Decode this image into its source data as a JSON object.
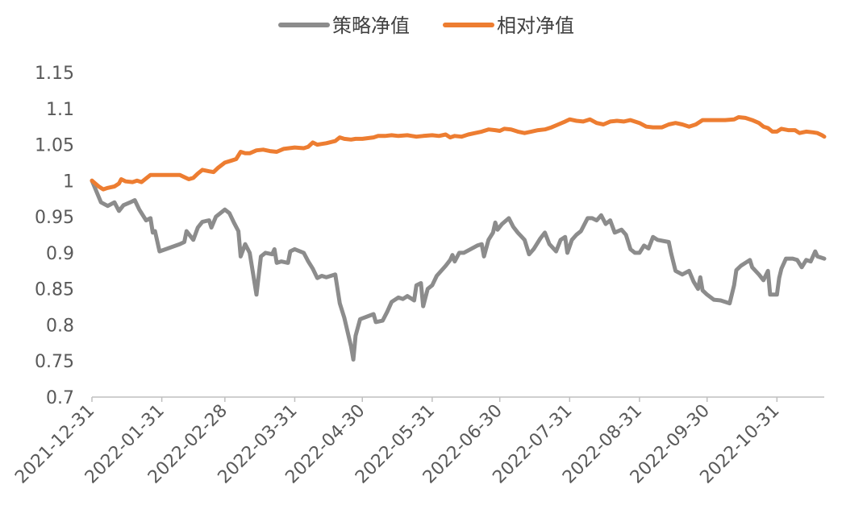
{
  "chart_data": {
    "type": "line",
    "title": "",
    "xlabel": "",
    "ylabel": "",
    "ylim": [
      0.7,
      1.15
    ],
    "y_ticks": [
      "0.7",
      "0.75",
      "0.8",
      "0.85",
      "0.9",
      "0.95",
      "1",
      "1.05",
      "1.1",
      "1.15"
    ],
    "x_range": [
      "2021-12-31",
      "2022-11-21"
    ],
    "x_ticks": [
      "2021-12-31",
      "2022-01-31",
      "2022-02-28",
      "2022-03-31",
      "2022-04-30",
      "2022-05-31",
      "2022-06-30",
      "2022-07-31",
      "2022-08-31",
      "2022-09-30",
      "2022-10-31"
    ],
    "grid": false,
    "legend": "top-center",
    "series": [
      {
        "name": "策略净值",
        "color": "#8c8c8c",
        "points": [
          [
            "2021-12-31",
            1.0
          ],
          [
            "2022-01-04",
            0.97
          ],
          [
            "2022-01-07",
            0.965
          ],
          [
            "2022-01-10",
            0.97
          ],
          [
            "2022-01-12",
            0.958
          ],
          [
            "2022-01-14",
            0.966
          ],
          [
            "2022-01-17",
            0.97
          ],
          [
            "2022-01-19",
            0.973
          ],
          [
            "2022-01-21",
            0.96
          ],
          [
            "2022-01-24",
            0.945
          ],
          [
            "2022-01-26",
            0.948
          ],
          [
            "2022-01-27",
            0.928
          ],
          [
            "2022-01-28",
            0.93
          ],
          [
            "2022-01-30",
            0.902
          ],
          [
            "2022-02-08",
            0.912
          ],
          [
            "2022-02-10",
            0.915
          ],
          [
            "2022-02-11",
            0.93
          ],
          [
            "2022-02-14",
            0.918
          ],
          [
            "2022-02-16",
            0.935
          ],
          [
            "2022-02-18",
            0.943
          ],
          [
            "2022-02-21",
            0.945
          ],
          [
            "2022-02-22",
            0.935
          ],
          [
            "2022-02-24",
            0.95
          ],
          [
            "2022-02-28",
            0.96
          ],
          [
            "2022-03-02",
            0.955
          ],
          [
            "2022-03-04",
            0.942
          ],
          [
            "2022-03-06",
            0.93
          ],
          [
            "2022-03-07",
            0.895
          ],
          [
            "2022-03-09",
            0.912
          ],
          [
            "2022-03-11",
            0.9
          ],
          [
            "2022-03-14",
            0.842
          ],
          [
            "2022-03-16",
            0.895
          ],
          [
            "2022-03-18",
            0.9
          ],
          [
            "2022-03-21",
            0.898
          ],
          [
            "2022-03-22",
            0.905
          ],
          [
            "2022-03-23",
            0.886
          ],
          [
            "2022-03-25",
            0.888
          ],
          [
            "2022-03-28",
            0.886
          ],
          [
            "2022-03-29",
            0.902
          ],
          [
            "2022-03-31",
            0.905
          ],
          [
            "2022-04-04",
            0.9
          ],
          [
            "2022-04-06",
            0.888
          ],
          [
            "2022-04-08",
            0.878
          ],
          [
            "2022-04-10",
            0.865
          ],
          [
            "2022-04-12",
            0.868
          ],
          [
            "2022-04-14",
            0.866
          ],
          [
            "2022-04-18",
            0.87
          ],
          [
            "2022-04-20",
            0.83
          ],
          [
            "2022-04-22",
            0.81
          ],
          [
            "2022-04-25",
            0.77
          ],
          [
            "2022-04-26",
            0.752
          ],
          [
            "2022-04-27",
            0.785
          ],
          [
            "2022-04-29",
            0.808
          ],
          [
            "2022-05-05",
            0.815
          ],
          [
            "2022-05-06",
            0.804
          ],
          [
            "2022-05-09",
            0.806
          ],
          [
            "2022-05-11",
            0.818
          ],
          [
            "2022-05-13",
            0.832
          ],
          [
            "2022-05-16",
            0.838
          ],
          [
            "2022-05-18",
            0.836
          ],
          [
            "2022-05-20",
            0.84
          ],
          [
            "2022-05-23",
            0.834
          ],
          [
            "2022-05-24",
            0.855
          ],
          [
            "2022-05-26",
            0.858
          ],
          [
            "2022-05-27",
            0.826
          ],
          [
            "2022-05-29",
            0.85
          ],
          [
            "2022-05-31",
            0.855
          ],
          [
            "2022-06-02",
            0.868
          ],
          [
            "2022-06-06",
            0.882
          ],
          [
            "2022-06-08",
            0.89
          ],
          [
            "2022-06-09",
            0.897
          ],
          [
            "2022-06-10",
            0.888
          ],
          [
            "2022-06-12",
            0.9
          ],
          [
            "2022-06-14",
            0.9
          ],
          [
            "2022-06-17",
            0.905
          ],
          [
            "2022-06-20",
            0.91
          ],
          [
            "2022-06-22",
            0.912
          ],
          [
            "2022-06-23",
            0.895
          ],
          [
            "2022-06-25",
            0.918
          ],
          [
            "2022-06-27",
            0.928
          ],
          [
            "2022-06-28",
            0.942
          ],
          [
            "2022-06-29",
            0.932
          ],
          [
            "2022-07-01",
            0.94
          ],
          [
            "2022-07-04",
            0.948
          ],
          [
            "2022-07-06",
            0.936
          ],
          [
            "2022-07-08",
            0.928
          ],
          [
            "2022-07-11",
            0.918
          ],
          [
            "2022-07-13",
            0.898
          ],
          [
            "2022-07-15",
            0.905
          ],
          [
            "2022-07-18",
            0.92
          ],
          [
            "2022-07-20",
            0.928
          ],
          [
            "2022-07-22",
            0.912
          ],
          [
            "2022-07-25",
            0.902
          ],
          [
            "2022-07-27",
            0.918
          ],
          [
            "2022-07-29",
            0.922
          ],
          [
            "2022-07-30",
            0.9
          ],
          [
            "2022-08-01",
            0.918
          ],
          [
            "2022-08-03",
            0.925
          ],
          [
            "2022-08-05",
            0.93
          ],
          [
            "2022-08-08",
            0.948
          ],
          [
            "2022-08-10",
            0.948
          ],
          [
            "2022-08-12",
            0.945
          ],
          [
            "2022-08-14",
            0.952
          ],
          [
            "2022-08-16",
            0.94
          ],
          [
            "2022-08-18",
            0.945
          ],
          [
            "2022-08-20",
            0.928
          ],
          [
            "2022-08-23",
            0.932
          ],
          [
            "2022-08-25",
            0.925
          ],
          [
            "2022-08-27",
            0.905
          ],
          [
            "2022-08-29",
            0.9
          ],
          [
            "2022-08-31",
            0.9
          ],
          [
            "2022-09-02",
            0.91
          ],
          [
            "2022-09-04",
            0.906
          ],
          [
            "2022-09-06",
            0.922
          ],
          [
            "2022-09-08",
            0.918
          ],
          [
            "2022-09-13",
            0.915
          ],
          [
            "2022-09-14",
            0.9
          ],
          [
            "2022-09-16",
            0.875
          ],
          [
            "2022-09-19",
            0.87
          ],
          [
            "2022-09-22",
            0.875
          ],
          [
            "2022-09-24",
            0.86
          ],
          [
            "2022-09-26",
            0.85
          ],
          [
            "2022-09-27",
            0.866
          ],
          [
            "2022-09-28",
            0.848
          ],
          [
            "2022-09-30",
            0.842
          ],
          [
            "2022-10-03",
            0.835
          ],
          [
            "2022-10-06",
            0.834
          ],
          [
            "2022-10-10",
            0.83
          ],
          [
            "2022-10-12",
            0.855
          ],
          [
            "2022-10-13",
            0.876
          ],
          [
            "2022-10-15",
            0.882
          ],
          [
            "2022-10-19",
            0.89
          ],
          [
            "2022-10-20",
            0.88
          ],
          [
            "2022-10-23",
            0.87
          ],
          [
            "2022-10-25",
            0.862
          ],
          [
            "2022-10-27",
            0.875
          ],
          [
            "2022-10-28",
            0.842
          ],
          [
            "2022-10-31",
            0.842
          ],
          [
            "2022-11-01",
            0.865
          ],
          [
            "2022-11-02",
            0.878
          ],
          [
            "2022-11-04",
            0.892
          ],
          [
            "2022-11-07",
            0.892
          ],
          [
            "2022-11-09",
            0.89
          ],
          [
            "2022-11-11",
            0.88
          ],
          [
            "2022-11-13",
            0.89
          ],
          [
            "2022-11-15",
            0.888
          ],
          [
            "2022-11-17",
            0.902
          ],
          [
            "2022-11-18",
            0.895
          ],
          [
            "2022-11-21",
            0.892
          ]
        ]
      },
      {
        "name": "相对净值",
        "color": "#ed7d31",
        "points": [
          [
            "2021-12-31",
            1.0
          ],
          [
            "2022-01-03",
            0.992
          ],
          [
            "2022-01-05",
            0.988
          ],
          [
            "2022-01-07",
            0.99
          ],
          [
            "2022-01-10",
            0.992
          ],
          [
            "2022-01-12",
            0.996
          ],
          [
            "2022-01-13",
            1.002
          ],
          [
            "2022-01-15",
            0.999
          ],
          [
            "2022-01-18",
            0.998
          ],
          [
            "2022-01-20",
            1.0
          ],
          [
            "2022-01-22",
            0.998
          ],
          [
            "2022-01-24",
            1.003
          ],
          [
            "2022-01-26",
            1.008
          ],
          [
            "2022-01-31",
            1.008
          ],
          [
            "2022-02-08",
            1.008
          ],
          [
            "2022-02-10",
            1.005
          ],
          [
            "2022-02-12",
            1.002
          ],
          [
            "2022-02-14",
            1.004
          ],
          [
            "2022-02-16",
            1.01
          ],
          [
            "2022-02-18",
            1.015
          ],
          [
            "2022-02-21",
            1.013
          ],
          [
            "2022-02-23",
            1.012
          ],
          [
            "2022-02-25",
            1.018
          ],
          [
            "2022-02-28",
            1.025
          ],
          [
            "2022-03-03",
            1.028
          ],
          [
            "2022-03-05",
            1.03
          ],
          [
            "2022-03-07",
            1.04
          ],
          [
            "2022-03-09",
            1.038
          ],
          [
            "2022-03-11",
            1.038
          ],
          [
            "2022-03-14",
            1.042
          ],
          [
            "2022-03-17",
            1.043
          ],
          [
            "2022-03-20",
            1.041
          ],
          [
            "2022-03-23",
            1.04
          ],
          [
            "2022-03-26",
            1.044
          ],
          [
            "2022-03-31",
            1.046
          ],
          [
            "2022-04-04",
            1.045
          ],
          [
            "2022-04-06",
            1.047
          ],
          [
            "2022-04-08",
            1.053
          ],
          [
            "2022-04-10",
            1.05
          ],
          [
            "2022-04-12",
            1.051
          ],
          [
            "2022-04-14",
            1.052
          ],
          [
            "2022-04-18",
            1.055
          ],
          [
            "2022-04-20",
            1.06
          ],
          [
            "2022-04-22",
            1.058
          ],
          [
            "2022-04-25",
            1.057
          ],
          [
            "2022-04-27",
            1.058
          ],
          [
            "2022-04-30",
            1.058
          ],
          [
            "2022-05-05",
            1.06
          ],
          [
            "2022-05-07",
            1.062
          ],
          [
            "2022-05-10",
            1.062
          ],
          [
            "2022-05-13",
            1.063
          ],
          [
            "2022-05-16",
            1.062
          ],
          [
            "2022-05-20",
            1.063
          ],
          [
            "2022-05-24",
            1.061
          ],
          [
            "2022-05-27",
            1.062
          ],
          [
            "2022-05-31",
            1.063
          ],
          [
            "2022-06-03",
            1.062
          ],
          [
            "2022-06-06",
            1.064
          ],
          [
            "2022-06-08",
            1.06
          ],
          [
            "2022-06-10",
            1.062
          ],
          [
            "2022-06-13",
            1.061
          ],
          [
            "2022-06-16",
            1.064
          ],
          [
            "2022-06-19",
            1.066
          ],
          [
            "2022-06-22",
            1.068
          ],
          [
            "2022-06-25",
            1.071
          ],
          [
            "2022-06-28",
            1.07
          ],
          [
            "2022-06-30",
            1.069
          ],
          [
            "2022-07-02",
            1.072
          ],
          [
            "2022-07-05",
            1.071
          ],
          [
            "2022-07-08",
            1.068
          ],
          [
            "2022-07-11",
            1.066
          ],
          [
            "2022-07-14",
            1.068
          ],
          [
            "2022-07-17",
            1.07
          ],
          [
            "2022-07-20",
            1.071
          ],
          [
            "2022-07-23",
            1.074
          ],
          [
            "2022-07-26",
            1.078
          ],
          [
            "2022-07-29",
            1.082
          ],
          [
            "2022-07-31",
            1.085
          ],
          [
            "2022-08-03",
            1.083
          ],
          [
            "2022-08-06",
            1.082
          ],
          [
            "2022-08-09",
            1.085
          ],
          [
            "2022-08-12",
            1.08
          ],
          [
            "2022-08-15",
            1.078
          ],
          [
            "2022-08-18",
            1.082
          ],
          [
            "2022-08-21",
            1.083
          ],
          [
            "2022-08-24",
            1.082
          ],
          [
            "2022-08-27",
            1.084
          ],
          [
            "2022-08-31",
            1.08
          ],
          [
            "2022-09-03",
            1.075
          ],
          [
            "2022-09-06",
            1.074
          ],
          [
            "2022-09-10",
            1.074
          ],
          [
            "2022-09-13",
            1.078
          ],
          [
            "2022-09-16",
            1.08
          ],
          [
            "2022-09-19",
            1.078
          ],
          [
            "2022-09-22",
            1.075
          ],
          [
            "2022-09-25",
            1.078
          ],
          [
            "2022-09-28",
            1.084
          ],
          [
            "2022-09-30",
            1.084
          ],
          [
            "2022-10-05",
            1.084
          ],
          [
            "2022-10-08",
            1.084
          ],
          [
            "2022-10-12",
            1.085
          ],
          [
            "2022-10-14",
            1.088
          ],
          [
            "2022-10-17",
            1.087
          ],
          [
            "2022-10-20",
            1.084
          ],
          [
            "2022-10-23",
            1.08
          ],
          [
            "2022-10-25",
            1.075
          ],
          [
            "2022-10-27",
            1.073
          ],
          [
            "2022-10-29",
            1.068
          ],
          [
            "2022-10-31",
            1.068
          ],
          [
            "2022-11-02",
            1.072
          ],
          [
            "2022-11-05",
            1.07
          ],
          [
            "2022-11-08",
            1.07
          ],
          [
            "2022-11-10",
            1.066
          ],
          [
            "2022-11-13",
            1.068
          ],
          [
            "2022-11-16",
            1.067
          ],
          [
            "2022-11-18",
            1.066
          ],
          [
            "2022-11-20",
            1.063
          ],
          [
            "2022-11-21",
            1.061
          ]
        ]
      }
    ]
  }
}
